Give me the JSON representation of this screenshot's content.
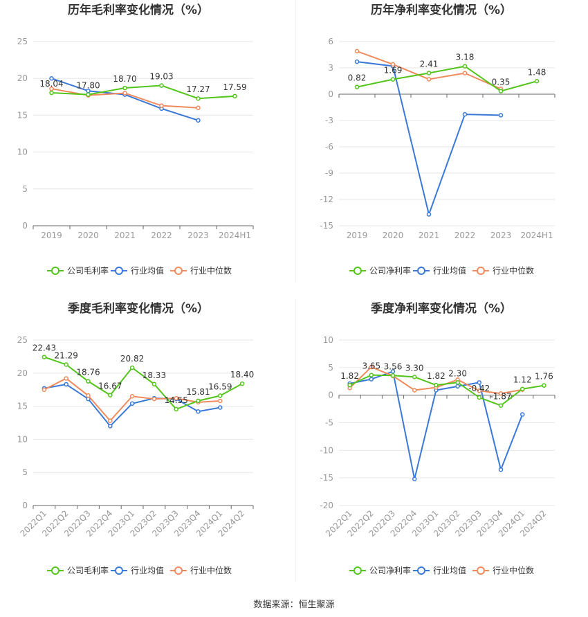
{
  "source": "数据来源：恒生聚源",
  "colors": {
    "company": "#52c41a",
    "avg": "#3a78d8",
    "median": "#f08a5d",
    "grid": "#e6e6e6",
    "axis": "#999999",
    "label": "#333333"
  },
  "chart_data": [
    {
      "type": "line",
      "title": "历年毛利率变化情况（%）",
      "categories": [
        "2019",
        "2020",
        "2021",
        "2022",
        "2023",
        "2024H1"
      ],
      "ylim": [
        0,
        25
      ],
      "yticks": [
        0,
        5,
        10,
        15,
        20,
        25
      ],
      "grid": true,
      "legend_position": "bottom",
      "series": [
        {
          "name": "公司毛利率",
          "key": "company",
          "values": [
            18.04,
            17.8,
            18.7,
            19.03,
            17.27,
            17.59
          ],
          "labels": [
            "18.04",
            "17.80",
            "18.70",
            "19.03",
            "17.27",
            "17.59"
          ]
        },
        {
          "name": "行业均值",
          "key": "avg",
          "values": [
            20.0,
            18.3,
            17.8,
            15.9,
            14.3,
            null
          ]
        },
        {
          "name": "行业中位数",
          "key": "median",
          "values": [
            18.6,
            17.7,
            18.0,
            16.3,
            16.0,
            null
          ]
        }
      ]
    },
    {
      "type": "line",
      "title": "历年净利率变化情况（%）",
      "categories": [
        "2019",
        "2020",
        "2021",
        "2022",
        "2023",
        "2024H1"
      ],
      "ylim": [
        -15,
        6
      ],
      "yticks": [
        -15,
        -12,
        -9,
        -6,
        -3,
        0,
        3,
        6
      ],
      "grid": true,
      "legend_position": "bottom",
      "series": [
        {
          "name": "公司净利率",
          "key": "company",
          "values": [
            0.82,
            1.69,
            2.41,
            3.18,
            0.35,
            1.48
          ],
          "labels": [
            "0.82",
            "1.69",
            "2.41",
            "3.18",
            "0.35",
            "1.48"
          ]
        },
        {
          "name": "行业均值",
          "key": "avg",
          "values": [
            3.7,
            3.2,
            -13.7,
            -2.3,
            -2.4,
            null
          ]
        },
        {
          "name": "行业中位数",
          "key": "median",
          "values": [
            4.9,
            3.4,
            1.7,
            2.4,
            0.6,
            null
          ]
        }
      ]
    },
    {
      "type": "line",
      "title": "季度毛利率变化情况（%）",
      "categories": [
        "2022Q1",
        "2022Q2",
        "2022Q3",
        "2022Q4",
        "2023Q1",
        "2023Q2",
        "2023Q3",
        "2023Q4",
        "2024Q1",
        "2024Q2"
      ],
      "ylim": [
        0,
        25
      ],
      "yticks": [
        0,
        5,
        10,
        15,
        20,
        25
      ],
      "grid": true,
      "legend_position": "bottom",
      "series": [
        {
          "name": "公司毛利率",
          "key": "company",
          "values": [
            22.43,
            21.29,
            18.76,
            16.67,
            20.82,
            18.33,
            14.55,
            15.81,
            16.59,
            18.4
          ],
          "labels": [
            "22.43",
            "21.29",
            "18.76",
            "16.67",
            "20.82",
            "18.33",
            "14.55",
            "15.81",
            "16.59",
            "18.40"
          ]
        },
        {
          "name": "行业均值",
          "key": "avg",
          "values": [
            17.7,
            18.3,
            16.1,
            12.0,
            15.4,
            16.2,
            16.1,
            14.2,
            14.8,
            null
          ]
        },
        {
          "name": "行业中位数",
          "key": "median",
          "values": [
            17.5,
            19.2,
            16.6,
            12.8,
            16.5,
            16.1,
            16.2,
            15.6,
            15.8,
            null
          ]
        }
      ]
    },
    {
      "type": "line",
      "title": "季度净利率变化情况（%）",
      "categories": [
        "2022Q1",
        "2022Q2",
        "2022Q3",
        "2022Q4",
        "2023Q1",
        "2023Q2",
        "2023Q3",
        "2023Q4",
        "2024Q1",
        "2024Q2"
      ],
      "ylim": [
        -20,
        10
      ],
      "yticks": [
        -20,
        -15,
        -10,
        -5,
        0,
        5,
        10
      ],
      "grid": true,
      "legend_position": "bottom",
      "series": [
        {
          "name": "公司净利率",
          "key": "company",
          "values": [
            1.82,
            3.65,
            3.56,
            3.3,
            1.82,
            2.3,
            -0.42,
            -1.87,
            1.12,
            1.76
          ],
          "labels": [
            "1.82",
            "3.65",
            "3.56",
            "3.30",
            "1.82",
            "2.30",
            "-0.42",
            "-1.87",
            "1.12",
            "1.76"
          ]
        },
        {
          "name": "行业均值",
          "key": "avg",
          "values": [
            2.1,
            2.9,
            4.3,
            -15.2,
            0.9,
            1.6,
            2.3,
            -13.5,
            -3.5,
            null
          ]
        },
        {
          "name": "行业中位数",
          "key": "median",
          "values": [
            1.3,
            5.1,
            3.5,
            0.9,
            1.4,
            2.8,
            0.8,
            0.3,
            1.0,
            null
          ]
        }
      ]
    }
  ]
}
